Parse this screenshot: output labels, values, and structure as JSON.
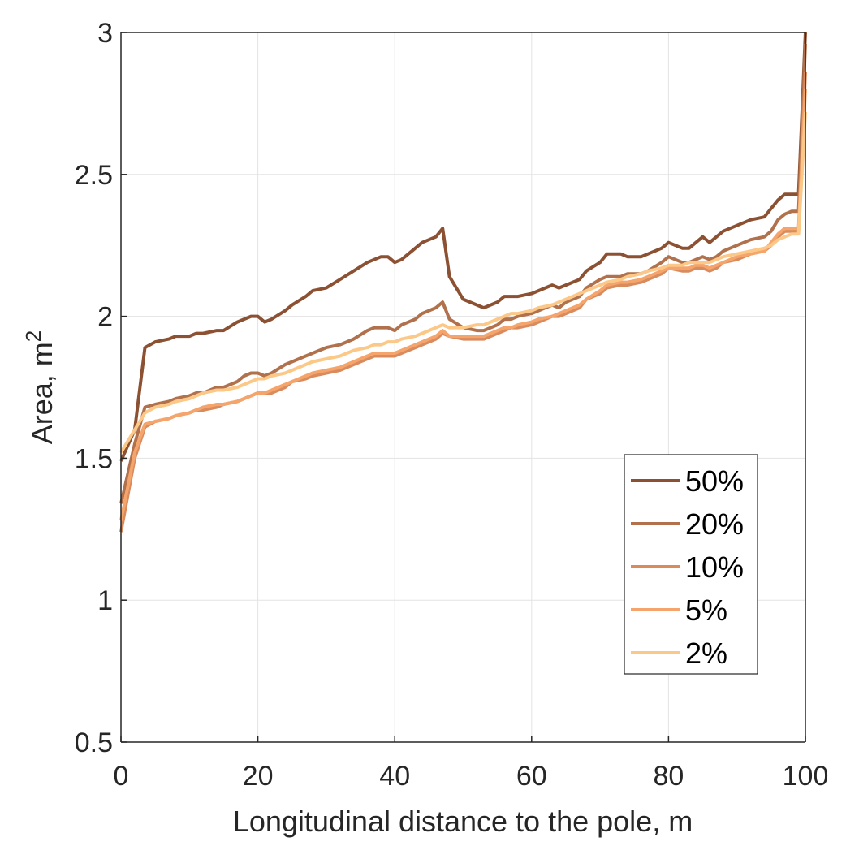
{
  "chart_data": {
    "type": "line",
    "title": "",
    "xlabel": "Longitudinal distance to the pole, m",
    "ylabel": "Area, m",
    "ylabel_superscript": "2",
    "xlim": [
      0,
      100
    ],
    "ylim": [
      0.5,
      3
    ],
    "xticks": [
      "0",
      "20",
      "40",
      "60",
      "80",
      "100"
    ],
    "yticks": [
      "0.5",
      "1",
      "1.5",
      "2",
      "2.5",
      "3"
    ],
    "grid": true,
    "legend_position": "lower-right",
    "x": [
      0,
      2,
      3.5,
      5,
      7,
      8,
      10,
      11,
      12,
      14,
      15,
      17,
      18,
      19,
      20,
      21,
      22,
      24,
      25,
      27,
      28,
      30,
      32,
      34,
      36,
      37,
      38,
      39,
      40,
      41,
      43,
      44,
      45,
      46,
      47,
      48,
      50,
      52,
      53,
      55,
      56,
      57,
      58,
      60,
      61,
      63,
      64,
      65,
      67,
      68,
      70,
      71,
      73,
      74,
      76,
      77,
      79,
      80,
      82,
      83,
      84,
      85,
      86,
      87,
      88,
      90,
      92,
      94,
      95,
      96,
      97,
      98,
      99,
      100
    ],
    "series": [
      {
        "name": "50%",
        "color": "#8c5132",
        "values": [
          1.49,
          1.6,
          1.89,
          1.91,
          1.92,
          1.93,
          1.93,
          1.94,
          1.94,
          1.95,
          1.95,
          1.98,
          1.99,
          2.0,
          2.0,
          1.98,
          1.99,
          2.02,
          2.04,
          2.07,
          2.09,
          2.1,
          2.13,
          2.16,
          2.19,
          2.2,
          2.21,
          2.21,
          2.19,
          2.2,
          2.24,
          2.26,
          2.27,
          2.28,
          2.31,
          2.14,
          2.06,
          2.04,
          2.03,
          2.05,
          2.07,
          2.07,
          2.07,
          2.08,
          2.09,
          2.11,
          2.1,
          2.11,
          2.13,
          2.16,
          2.19,
          2.22,
          2.22,
          2.21,
          2.21,
          2.22,
          2.24,
          2.26,
          2.24,
          2.24,
          2.26,
          2.28,
          2.26,
          2.28,
          2.3,
          2.32,
          2.34,
          2.35,
          2.38,
          2.41,
          2.43,
          2.43,
          2.43,
          3.0
        ]
      },
      {
        "name": "20%",
        "color": "#b0714c",
        "values": [
          1.34,
          1.55,
          1.68,
          1.69,
          1.7,
          1.71,
          1.72,
          1.73,
          1.73,
          1.75,
          1.75,
          1.77,
          1.79,
          1.8,
          1.8,
          1.79,
          1.8,
          1.83,
          1.84,
          1.86,
          1.87,
          1.89,
          1.9,
          1.92,
          1.95,
          1.96,
          1.96,
          1.96,
          1.95,
          1.97,
          1.99,
          2.01,
          2.02,
          2.03,
          2.05,
          1.99,
          1.96,
          1.95,
          1.95,
          1.97,
          1.99,
          1.99,
          2.0,
          2.01,
          2.02,
          2.04,
          2.03,
          2.05,
          2.07,
          2.1,
          2.13,
          2.14,
          2.14,
          2.15,
          2.15,
          2.16,
          2.19,
          2.21,
          2.19,
          2.19,
          2.2,
          2.21,
          2.2,
          2.21,
          2.23,
          2.25,
          2.27,
          2.28,
          2.3,
          2.34,
          2.36,
          2.37,
          2.37,
          2.96
        ]
      },
      {
        "name": "10%",
        "color": "#d98b5e",
        "values": [
          1.24,
          1.5,
          1.61,
          1.63,
          1.64,
          1.65,
          1.66,
          1.67,
          1.67,
          1.68,
          1.69,
          1.7,
          1.71,
          1.72,
          1.73,
          1.73,
          1.73,
          1.75,
          1.77,
          1.78,
          1.79,
          1.8,
          1.81,
          1.83,
          1.85,
          1.86,
          1.86,
          1.86,
          1.86,
          1.87,
          1.89,
          1.9,
          1.91,
          1.92,
          1.94,
          1.93,
          1.92,
          1.92,
          1.92,
          1.94,
          1.95,
          1.96,
          1.96,
          1.97,
          1.98,
          2.0,
          2.0,
          2.01,
          2.03,
          2.06,
          2.08,
          2.1,
          2.11,
          2.11,
          2.12,
          2.13,
          2.15,
          2.17,
          2.16,
          2.16,
          2.17,
          2.17,
          2.16,
          2.17,
          2.19,
          2.2,
          2.22,
          2.23,
          2.25,
          2.28,
          2.3,
          2.3,
          2.3,
          2.86
        ]
      },
      {
        "name": "5%",
        "color": "#f5a46b",
        "values": [
          1.28,
          1.52,
          1.62,
          1.63,
          1.64,
          1.65,
          1.66,
          1.67,
          1.68,
          1.69,
          1.69,
          1.7,
          1.71,
          1.72,
          1.73,
          1.73,
          1.74,
          1.76,
          1.77,
          1.79,
          1.8,
          1.81,
          1.82,
          1.84,
          1.86,
          1.87,
          1.87,
          1.87,
          1.87,
          1.88,
          1.9,
          1.91,
          1.92,
          1.93,
          1.95,
          1.93,
          1.93,
          1.93,
          1.93,
          1.95,
          1.96,
          1.96,
          1.97,
          1.98,
          1.99,
          2.0,
          2.01,
          2.02,
          2.04,
          2.06,
          2.09,
          2.11,
          2.12,
          2.12,
          2.13,
          2.14,
          2.16,
          2.17,
          2.17,
          2.17,
          2.18,
          2.18,
          2.17,
          2.18,
          2.19,
          2.21,
          2.22,
          2.23,
          2.26,
          2.29,
          2.31,
          2.31,
          2.31,
          2.8
        ]
      },
      {
        "name": "2%",
        "color": "#fcc888",
        "values": [
          1.52,
          1.6,
          1.66,
          1.68,
          1.69,
          1.7,
          1.71,
          1.72,
          1.73,
          1.74,
          1.74,
          1.75,
          1.76,
          1.77,
          1.78,
          1.78,
          1.79,
          1.8,
          1.81,
          1.83,
          1.84,
          1.85,
          1.86,
          1.88,
          1.89,
          1.9,
          1.9,
          1.91,
          1.91,
          1.92,
          1.93,
          1.94,
          1.95,
          1.96,
          1.97,
          1.96,
          1.96,
          1.97,
          1.97,
          1.99,
          2.0,
          2.01,
          2.01,
          2.02,
          2.03,
          2.04,
          2.05,
          2.06,
          2.08,
          2.09,
          2.11,
          2.12,
          2.13,
          2.14,
          2.15,
          2.16,
          2.17,
          2.18,
          2.18,
          2.19,
          2.19,
          2.19,
          2.19,
          2.2,
          2.21,
          2.22,
          2.23,
          2.24,
          2.25,
          2.27,
          2.28,
          2.29,
          2.29,
          2.72
        ]
      }
    ]
  }
}
